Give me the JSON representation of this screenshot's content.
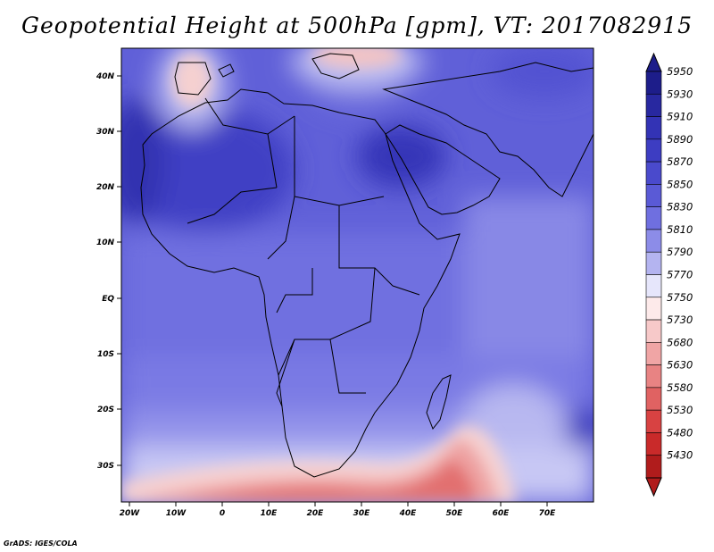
{
  "title": "Geopotential Height at 500hPa [gpm], VT: 2017082915",
  "credit": "GrADS: IGES/COLA",
  "map": {
    "lon_ticks": [
      "20W",
      "10W",
      "0",
      "10E",
      "20E",
      "30E",
      "40E",
      "50E",
      "60E",
      "70E"
    ],
    "lat_ticks": [
      "40N",
      "30N",
      "20N",
      "10N",
      "EQ",
      "10S",
      "20S",
      "30S"
    ]
  },
  "colorbar": {
    "labels": [
      "5950",
      "5930",
      "5910",
      "5890",
      "5870",
      "5850",
      "5830",
      "5810",
      "5790",
      "5770",
      "5750",
      "5730",
      "5680",
      "5630",
      "5580",
      "5530",
      "5480",
      "5430"
    ],
    "colors": [
      "#1d1d8a",
      "#2828a0",
      "#3333b5",
      "#3d3dc2",
      "#4a4acc",
      "#5a5ad6",
      "#6f6fe0",
      "#8c8ce8",
      "#b4b4f0",
      "#e6e6fb",
      "#fdeaea",
      "#f7c9c9",
      "#f0a5a5",
      "#e88383",
      "#e06262",
      "#d84242",
      "#c92a2a",
      "#b01c1c"
    ]
  }
}
